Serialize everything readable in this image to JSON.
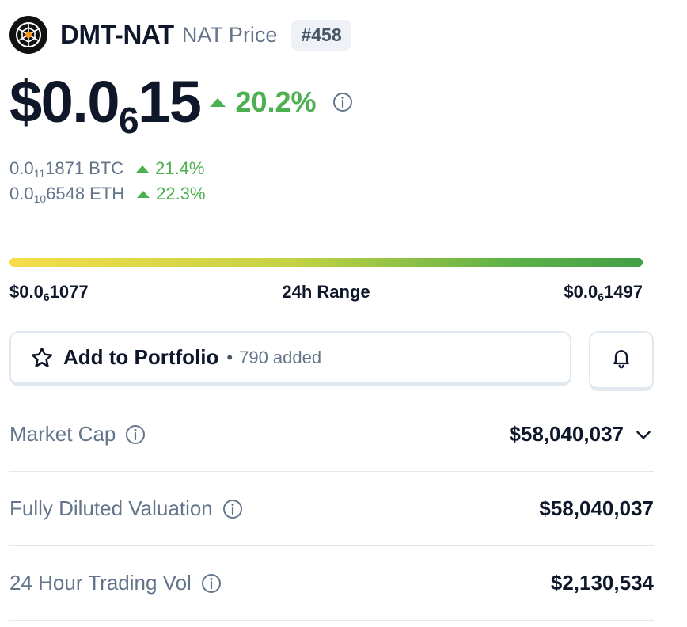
{
  "coin": {
    "name": "DMT-NAT",
    "subtitle": "NAT Price",
    "rank": "#458",
    "logo_icon": "dmt-nat-logo-icon"
  },
  "price": {
    "prefix": "$0.0",
    "zeros": "6",
    "digits": "15",
    "change": "20.2%",
    "change_direction": "up"
  },
  "conversions": [
    {
      "prefix": "0.0",
      "zeros": "11",
      "digits": "1871",
      "unit": "BTC",
      "change": "21.4%"
    },
    {
      "prefix": "0.0",
      "zeros": "10",
      "digits": "6548",
      "unit": "ETH",
      "change": "22.3%"
    }
  ],
  "range": {
    "low_prefix": "$0.0",
    "low_zeros": "6",
    "low_digits": "1077",
    "label": "24h Range",
    "high_prefix": "$0.0",
    "high_zeros": "6",
    "high_digits": "1497"
  },
  "portfolio": {
    "label": "Add to Portfolio",
    "separator": "•",
    "added_count": "790 added",
    "star_icon": "star-icon",
    "bell_icon": "bell-icon"
  },
  "stats": [
    {
      "label": "Market Cap",
      "value": "$58,040,037"
    },
    {
      "label": "Fully Diluted Valuation",
      "value": "$58,040,037"
    },
    {
      "label": "24 Hour Trading Vol",
      "value": "$2,130,534"
    }
  ],
  "colors": {
    "positive": "#4caf50",
    "muted": "#64748b",
    "text": "#0f172a",
    "range_start": "#f5dd4a",
    "range_end": "#43a047"
  }
}
